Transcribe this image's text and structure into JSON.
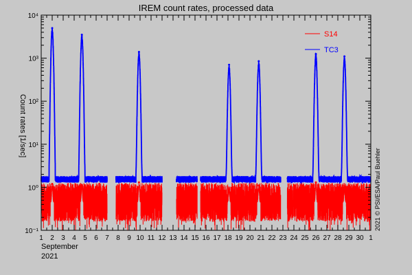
{
  "chart_data": {
    "type": "line",
    "title": "IREM count rates, processed data",
    "ylabel": "Count rates [1/sec]",
    "xlabel_month": "September",
    "xlabel_year": "2021",
    "credit": "2021 © PSI/ESA/Paul Buehler",
    "yscale": "log",
    "ylim": [
      0.1,
      10000
    ],
    "xlim": [
      1,
      31
    ],
    "x_ticks": [
      1,
      2,
      3,
      4,
      5,
      6,
      7,
      8,
      9,
      10,
      11,
      12,
      13,
      14,
      15,
      16,
      17,
      18,
      19,
      20,
      21,
      22,
      23,
      24,
      25,
      26,
      27,
      28,
      29,
      30,
      31
    ],
    "x_tick_labels": [
      "1",
      "2",
      "3",
      "4",
      "5",
      "6",
      "7",
      "8",
      "9",
      "10",
      "11",
      "12",
      "13",
      "14",
      "15",
      "16",
      "17",
      "18",
      "19",
      "20",
      "21",
      "22",
      "23",
      "24",
      "25",
      "26",
      "27",
      "28",
      "29",
      "30",
      "1"
    ],
    "y_ticks": [
      0.1,
      1,
      10,
      100,
      1000,
      10000
    ],
    "y_tick_labels": [
      "10⁻¹",
      "10⁰",
      "10¹",
      "10²",
      "10³",
      "10⁴"
    ],
    "legend_position": "top-right",
    "colors": {
      "S14": "#ff0000",
      "TC3": "#0000ff",
      "background": "#c8c8c8"
    },
    "series": [
      {
        "name": "S14",
        "baseline": 0.45,
        "gaps": [
          [
            7.0,
            7.8
          ],
          [
            12.0,
            13.3
          ],
          [
            15.2,
            15.5
          ],
          [
            22.8,
            23.4
          ]
        ],
        "spikes": [
          [
            2.0,
            1.2
          ],
          [
            4.7,
            1.1
          ],
          [
            9.9,
            1.3
          ],
          [
            18.1,
            0.9
          ],
          [
            20.8,
            1.1
          ],
          [
            26.0,
            1.3
          ],
          [
            28.6,
            0.9
          ]
        ]
      },
      {
        "name": "TC3",
        "baseline": 1.55,
        "gaps": [
          [
            7.0,
            7.8
          ],
          [
            12.0,
            13.3
          ],
          [
            15.2,
            15.5
          ],
          [
            22.8,
            23.4
          ]
        ],
        "spikes": [
          [
            2.0,
            5000
          ],
          [
            4.7,
            3500
          ],
          [
            9.9,
            1400
          ],
          [
            18.1,
            700
          ],
          [
            20.8,
            850
          ],
          [
            26.0,
            1250
          ],
          [
            28.6,
            1100
          ]
        ]
      }
    ]
  }
}
